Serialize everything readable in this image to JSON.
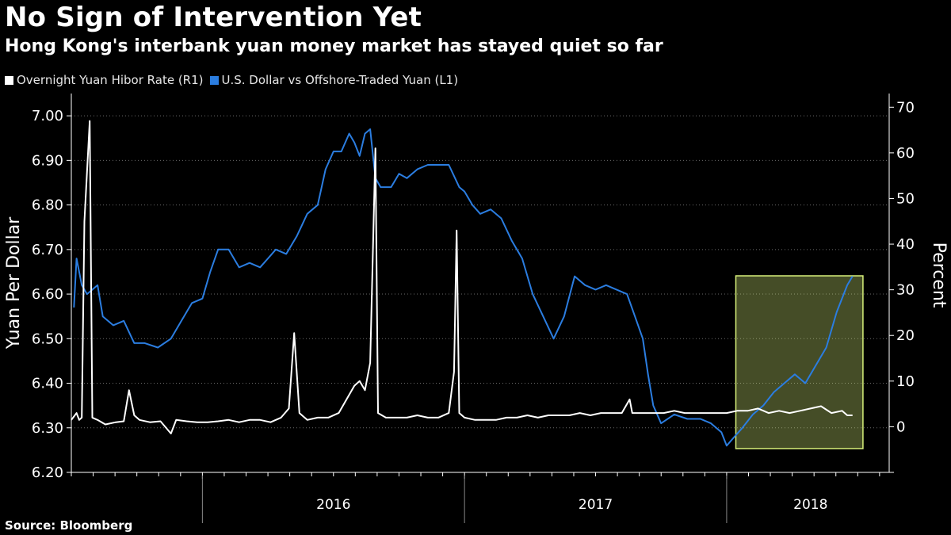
{
  "header": {
    "title": "No Sign of Intervention Yet",
    "subtitle": "Hong Kong's interbank yuan money market has stayed quiet so far"
  },
  "legend": {
    "items": [
      {
        "label": "Overnight Yuan Hibor Rate (R1)",
        "color": "#ffffff"
      },
      {
        "label": "U.S. Dollar vs Offshore-Traded Yuan (L1)",
        "color": "#2b7de0"
      }
    ]
  },
  "footer": {
    "source": "Source: Bloomberg"
  },
  "chart_data": {
    "type": "line",
    "title": "No Sign of Intervention Yet",
    "x_years": [
      "2016",
      "2017",
      "2018"
    ],
    "x_range": [
      2015.5,
      2018.62
    ],
    "left_axis": {
      "label": "Yuan Per Dollar",
      "range": [
        6.2,
        7.05
      ],
      "ticks": [
        "6.20",
        "6.30",
        "6.40",
        "6.50",
        "6.60",
        "6.70",
        "6.80",
        "6.90",
        "7.00"
      ]
    },
    "right_axis": {
      "label": "Percent",
      "range": [
        -10,
        73
      ],
      "ticks": [
        "0",
        "10",
        "20",
        "30",
        "40",
        "50",
        "60",
        "70"
      ]
    },
    "highlight": {
      "x_start": 2018.05,
      "x_end": 2018.62,
      "color": "#d7f07a"
    },
    "series": [
      {
        "name": "U.S. Dollar vs Offshore-Traded Yuan (L1)",
        "axis": "left",
        "color": "#2b7de0",
        "points": [
          [
            2015.51,
            6.57
          ],
          [
            2015.52,
            6.68
          ],
          [
            2015.54,
            6.62
          ],
          [
            2015.56,
            6.6
          ],
          [
            2015.6,
            6.62
          ],
          [
            2015.62,
            6.55
          ],
          [
            2015.66,
            6.53
          ],
          [
            2015.7,
            6.54
          ],
          [
            2015.74,
            6.49
          ],
          [
            2015.78,
            6.49
          ],
          [
            2015.83,
            6.48
          ],
          [
            2015.88,
            6.5
          ],
          [
            2015.92,
            6.54
          ],
          [
            2015.96,
            6.58
          ],
          [
            2016.0,
            6.59
          ],
          [
            2016.03,
            6.65
          ],
          [
            2016.06,
            6.7
          ],
          [
            2016.1,
            6.7
          ],
          [
            2016.14,
            6.66
          ],
          [
            2016.18,
            6.67
          ],
          [
            2016.22,
            6.66
          ],
          [
            2016.25,
            6.68
          ],
          [
            2016.28,
            6.7
          ],
          [
            2016.32,
            6.69
          ],
          [
            2016.36,
            6.73
          ],
          [
            2016.4,
            6.78
          ],
          [
            2016.44,
            6.8
          ],
          [
            2016.47,
            6.88
          ],
          [
            2016.5,
            6.92
          ],
          [
            2016.53,
            6.92
          ],
          [
            2016.56,
            6.96
          ],
          [
            2016.58,
            6.94
          ],
          [
            2016.6,
            6.91
          ],
          [
            2016.62,
            6.96
          ],
          [
            2016.64,
            6.97
          ],
          [
            2016.66,
            6.86
          ],
          [
            2016.68,
            6.84
          ],
          [
            2016.72,
            6.84
          ],
          [
            2016.75,
            6.87
          ],
          [
            2016.78,
            6.86
          ],
          [
            2016.82,
            6.88
          ],
          [
            2016.86,
            6.89
          ],
          [
            2016.9,
            6.89
          ],
          [
            2016.94,
            6.89
          ],
          [
            2016.98,
            6.84
          ],
          [
            2017.0,
            6.83
          ],
          [
            2017.03,
            6.8
          ],
          [
            2017.06,
            6.78
          ],
          [
            2017.1,
            6.79
          ],
          [
            2017.14,
            6.77
          ],
          [
            2017.18,
            6.72
          ],
          [
            2017.22,
            6.68
          ],
          [
            2017.26,
            6.6
          ],
          [
            2017.3,
            6.55
          ],
          [
            2017.34,
            6.5
          ],
          [
            2017.38,
            6.55
          ],
          [
            2017.42,
            6.64
          ],
          [
            2017.46,
            6.62
          ],
          [
            2017.5,
            6.61
          ],
          [
            2017.54,
            6.62
          ],
          [
            2017.58,
            6.61
          ],
          [
            2017.62,
            6.6
          ],
          [
            2017.65,
            6.55
          ],
          [
            2017.68,
            6.5
          ],
          [
            2017.7,
            6.42
          ],
          [
            2017.72,
            6.35
          ],
          [
            2017.75,
            6.31
          ],
          [
            2017.8,
            6.33
          ],
          [
            2017.85,
            6.32
          ],
          [
            2017.9,
            6.32
          ],
          [
            2017.94,
            6.31
          ],
          [
            2017.98,
            6.29
          ],
          [
            2018.0,
            6.26
          ],
          [
            2018.03,
            6.28
          ],
          [
            2018.06,
            6.3
          ],
          [
            2018.1,
            6.33
          ],
          [
            2018.14,
            6.35
          ],
          [
            2018.18,
            6.38
          ],
          [
            2018.22,
            6.4
          ],
          [
            2018.26,
            6.42
          ],
          [
            2018.3,
            6.4
          ],
          [
            2018.34,
            6.44
          ],
          [
            2018.38,
            6.48
          ],
          [
            2018.42,
            6.56
          ],
          [
            2018.46,
            6.62
          ],
          [
            2018.48,
            6.64
          ]
        ]
      },
      {
        "name": "Overnight Yuan Hibor Rate (R1)",
        "axis": "right",
        "color": "#ffffff",
        "points": [
          [
            2015.5,
            1.5
          ],
          [
            2015.52,
            3.0
          ],
          [
            2015.53,
            1.5
          ],
          [
            2015.54,
            2.0
          ],
          [
            2015.55,
            45
          ],
          [
            2015.57,
            67
          ],
          [
            2015.58,
            2.0
          ],
          [
            2015.6,
            1.5
          ],
          [
            2015.63,
            0.5
          ],
          [
            2015.67,
            1.0
          ],
          [
            2015.7,
            1.2
          ],
          [
            2015.72,
            8.0
          ],
          [
            2015.74,
            2.5
          ],
          [
            2015.76,
            1.5
          ],
          [
            2015.8,
            1.0
          ],
          [
            2015.84,
            1.2
          ],
          [
            2015.88,
            -1.5
          ],
          [
            2015.9,
            1.5
          ],
          [
            2015.94,
            1.2
          ],
          [
            2015.98,
            1.0
          ],
          [
            2016.02,
            1.0
          ],
          [
            2016.06,
            1.2
          ],
          [
            2016.1,
            1.5
          ],
          [
            2016.14,
            1.0
          ],
          [
            2016.18,
            1.5
          ],
          [
            2016.22,
            1.5
          ],
          [
            2016.26,
            1.0
          ],
          [
            2016.3,
            2.0
          ],
          [
            2016.33,
            4.0
          ],
          [
            2016.35,
            20.5
          ],
          [
            2016.37,
            3.0
          ],
          [
            2016.4,
            1.5
          ],
          [
            2016.44,
            2.0
          ],
          [
            2016.48,
            2.0
          ],
          [
            2016.52,
            3.0
          ],
          [
            2016.55,
            6.0
          ],
          [
            2016.58,
            9.0
          ],
          [
            2016.6,
            10
          ],
          [
            2016.62,
            8.0
          ],
          [
            2016.64,
            14
          ],
          [
            2016.66,
            61
          ],
          [
            2016.67,
            3.0
          ],
          [
            2016.7,
            2.0
          ],
          [
            2016.74,
            2.0
          ],
          [
            2016.78,
            2.0
          ],
          [
            2016.82,
            2.5
          ],
          [
            2016.86,
            2.0
          ],
          [
            2016.9,
            2.0
          ],
          [
            2016.94,
            3.0
          ],
          [
            2016.96,
            12
          ],
          [
            2016.97,
            43
          ],
          [
            2016.98,
            3.0
          ],
          [
            2017.0,
            2.0
          ],
          [
            2017.04,
            1.5
          ],
          [
            2017.08,
            1.5
          ],
          [
            2017.12,
            1.5
          ],
          [
            2017.16,
            2.0
          ],
          [
            2017.2,
            2.0
          ],
          [
            2017.24,
            2.5
          ],
          [
            2017.28,
            2.0
          ],
          [
            2017.32,
            2.5
          ],
          [
            2017.36,
            2.5
          ],
          [
            2017.4,
            2.5
          ],
          [
            2017.44,
            3.0
          ],
          [
            2017.48,
            2.5
          ],
          [
            2017.52,
            3.0
          ],
          [
            2017.56,
            3.0
          ],
          [
            2017.6,
            3.0
          ],
          [
            2017.63,
            6.0
          ],
          [
            2017.64,
            3.0
          ],
          [
            2017.68,
            3.0
          ],
          [
            2017.72,
            3.0
          ],
          [
            2017.76,
            3.0
          ],
          [
            2017.8,
            3.5
          ],
          [
            2017.84,
            3.0
          ],
          [
            2017.88,
            3.0
          ],
          [
            2017.92,
            3.0
          ],
          [
            2017.96,
            3.0
          ],
          [
            2018.0,
            3.0
          ],
          [
            2018.04,
            3.5
          ],
          [
            2018.08,
            3.5
          ],
          [
            2018.12,
            4.0
          ],
          [
            2018.16,
            3.0
          ],
          [
            2018.2,
            3.5
          ],
          [
            2018.24,
            3.0
          ],
          [
            2018.28,
            3.5
          ],
          [
            2018.32,
            4.0
          ],
          [
            2018.36,
            4.5
          ],
          [
            2018.4,
            3.0
          ],
          [
            2018.44,
            3.5
          ],
          [
            2018.46,
            2.5
          ],
          [
            2018.48,
            2.5
          ]
        ]
      }
    ]
  }
}
